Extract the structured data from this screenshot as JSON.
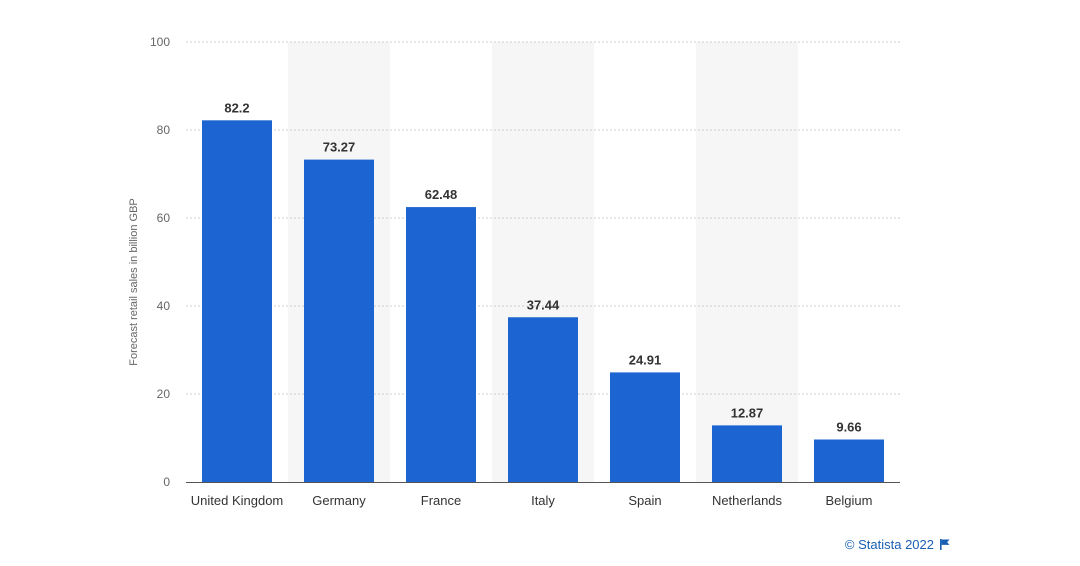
{
  "chart_data": {
    "type": "bar",
    "categories": [
      "United Kingdom",
      "Germany",
      "France",
      "Italy",
      "Spain",
      "Netherlands",
      "Belgium"
    ],
    "values": [
      82.2,
      73.27,
      62.48,
      37.44,
      24.91,
      12.87,
      9.66
    ],
    "value_labels": [
      "82.2",
      "73.27",
      "62.48",
      "37.44",
      "24.91",
      "12.87",
      "9.66"
    ],
    "title": "",
    "xlabel": "",
    "ylabel": "Forecast retail sales in billion GBP",
    "ylim": [
      0,
      100
    ],
    "yticks": [
      0,
      20,
      40,
      60,
      80,
      100
    ],
    "grid": true,
    "bar_color": "#1b64d1",
    "band_color": "#f6f6f6"
  },
  "footer": {
    "credit": "© Statista 2022",
    "flag_icon": "flag-icon"
  }
}
